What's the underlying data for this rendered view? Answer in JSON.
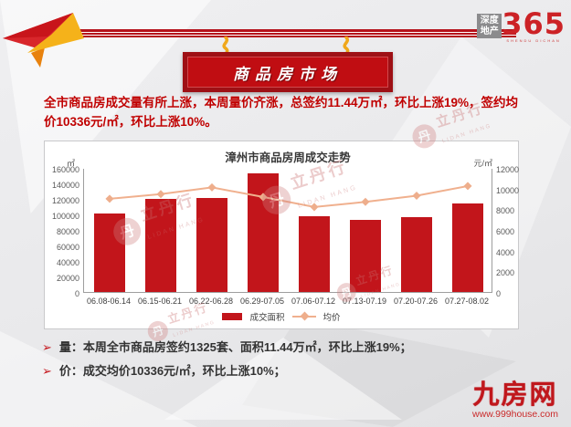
{
  "header": {
    "brand_box_line1": "深度",
    "brand_box_line2": "地产",
    "brand_number": "365",
    "brand_subtext": "SHENDU DICHAN",
    "sign_title": "商品房市场"
  },
  "summary": {
    "text": "全市商品房成交量有所上涨，本周量价齐涨，总签约11.44万㎡，环比上涨19%，签约均价10336元/㎡，环比上涨10%。"
  },
  "watermark": {
    "circle_char": "丹",
    "label": "立丹行",
    "sub": "LIDAN HANG"
  },
  "chart_data": {
    "type": "bar",
    "title": "漳州市商品房周成交走势",
    "categories": [
      "06.08-06.14",
      "06.15-06.21",
      "06.22-06.28",
      "06.29-07.05",
      "07.06-07.12",
      "07.13-07.19",
      "07.20-07.26",
      "07.27-08.02"
    ],
    "series": [
      {
        "name": "成交面积",
        "type": "bar",
        "axis": "left",
        "values": [
          101000,
          119500,
          121000,
          152500,
          98000,
          93000,
          96000,
          114400
        ]
      },
      {
        "name": "均价",
        "type": "line",
        "axis": "right",
        "values": [
          9100,
          9550,
          10200,
          9270,
          8300,
          8800,
          9400,
          10336
        ]
      }
    ],
    "left_axis": {
      "unit": "㎡",
      "min": 0,
      "max": 160000,
      "ticks": [
        "160000",
        "140000",
        "120000",
        "100000",
        "80000",
        "60000",
        "40000",
        "20000",
        "0"
      ]
    },
    "right_axis": {
      "unit": "元/㎡",
      "min": 0,
      "max": 12000,
      "ticks": [
        "12000",
        "10000",
        "8000",
        "6000",
        "4000",
        "2000",
        "0"
      ]
    },
    "legend": [
      "成交面积",
      "均价"
    ],
    "legend_position": "bottom",
    "grid": false,
    "colors": {
      "bar": "#c2151b",
      "line": "#f0b08e"
    }
  },
  "bullets": [
    {
      "marker": "➢",
      "text": "量：本周全市商品房签约1325套、面积11.44万㎡，环比上涨19%；"
    },
    {
      "marker": "➢",
      "text": "价：成交均价10336元/㎡，环比上涨10%；"
    }
  ],
  "footer": {
    "site_name": "九房网",
    "site_url": "www.999house.com"
  }
}
